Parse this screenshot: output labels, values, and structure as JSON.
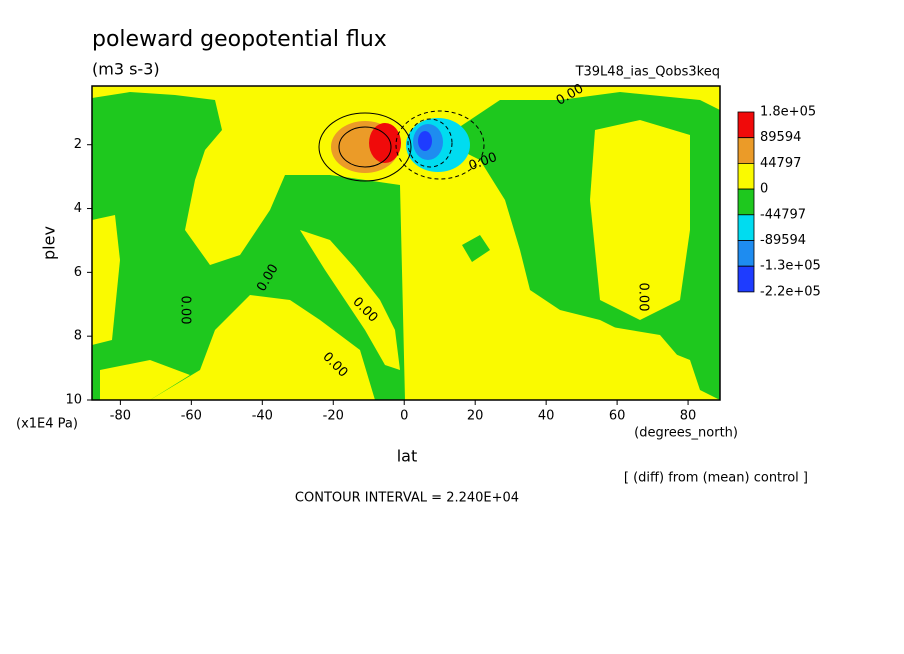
{
  "chart_data": {
    "type": "contour",
    "title": "poleward geopotential flux",
    "subtitle": "(m3 s-3)",
    "run_label": "T39L48_ias_Qobs3keq",
    "x_label": "lat",
    "x_units": "(degrees_north)",
    "y_label": "plev",
    "y_units": "(x1E4 Pa)",
    "xlim": [
      -88,
      89
    ],
    "xticks": [
      -80,
      -60,
      -40,
      -20,
      0,
      20,
      40,
      60,
      80
    ],
    "ylim": [
      10,
      0.16
    ],
    "yticks": [
      2,
      4,
      6,
      8,
      10
    ],
    "levels": [
      {
        "value": 180000,
        "label": "1.8e+05"
      },
      89594,
      44797,
      0,
      -44797,
      -89594,
      {
        "value": -130000,
        "label": "-1.3e+05"
      },
      {
        "value": -220000,
        "label": "-2.2e+05"
      }
    ],
    "colors": [
      "#f00a0a",
      "#eb9b28",
      "#fafa00",
      "#1ec81e",
      "#00dcf0",
      "#1e8cf0",
      "#1e3cff"
    ],
    "contour_labels": [
      "0.00",
      "0.00",
      "0.00",
      "0.00",
      "0.00",
      "0.00",
      "0.00"
    ],
    "note": "[ (diff) from (mean) control ]",
    "contour_interval": "CONTOUR INTERVAL = 2.240E+04"
  }
}
